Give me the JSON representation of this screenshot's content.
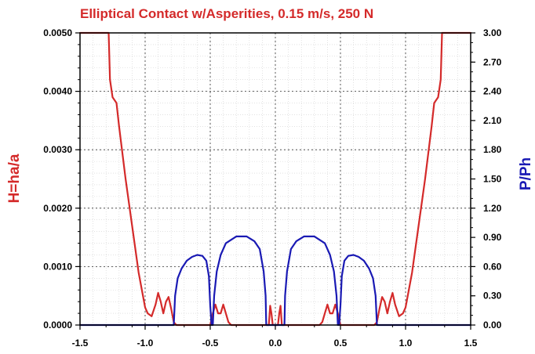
{
  "chart_data": {
    "type": "line",
    "title": "Elliptical Contact w/Asperities, 0.15 m/s, 250 N",
    "xlabel": "",
    "ylabel_left": "H=ha/a",
    "ylabel_right": "P/Ph",
    "xlim": [
      -1.5,
      1.5
    ],
    "ylim_left": [
      0,
      0.005
    ],
    "ylim_right": [
      0,
      3.0
    ],
    "x_ticks": [
      "-1.5",
      "-1.0",
      "-0.5",
      "0.0",
      "0.5",
      "1.0",
      "1.5"
    ],
    "y_left_ticks": [
      "0.0000",
      "0.0010",
      "0.0020",
      "0.0030",
      "0.0040",
      "0.0050"
    ],
    "y_right_ticks": [
      "0.00",
      "0.30",
      "0.60",
      "0.90",
      "1.20",
      "1.50",
      "1.80",
      "2.10",
      "2.40",
      "2.70",
      "3.00"
    ],
    "grid": true,
    "colors": {
      "film": "#d42a2a",
      "pressure": "#1a1ab4",
      "title": "#d42a2a"
    },
    "series": [
      {
        "axis": "left",
        "color": "#d42a2a",
        "x": [
          -1.5,
          -1.28,
          -1.27,
          -1.25,
          -1.22,
          -1.2,
          -1.15,
          -1.1,
          -1.05,
          -1.0,
          -0.98,
          -0.95,
          -0.92,
          -0.9,
          -0.88,
          -0.86,
          -0.84,
          -0.82,
          -0.8,
          -0.78,
          -0.76,
          -0.5,
          -0.48,
          -0.46,
          -0.44,
          -0.42,
          -0.4,
          -0.38,
          -0.36,
          -0.34,
          -0.05,
          -0.04,
          -0.03,
          -0.02,
          -0.01,
          0.0,
          0.01,
          0.02,
          0.03,
          0.04,
          0.05,
          0.34,
          0.36,
          0.38,
          0.4,
          0.42,
          0.44,
          0.46,
          0.48,
          0.5,
          0.76,
          0.78,
          0.8,
          0.82,
          0.84,
          0.86,
          0.88,
          0.9,
          0.92,
          0.95,
          0.98,
          1.0,
          1.05,
          1.1,
          1.15,
          1.2,
          1.22,
          1.25,
          1.27,
          1.28,
          1.5
        ],
        "y": [
          0.005,
          0.005,
          0.0042,
          0.0039,
          0.0038,
          0.0034,
          0.0025,
          0.0017,
          0.0009,
          0.0003,
          0.0002,
          0.00015,
          0.00035,
          0.00055,
          0.0004,
          0.0002,
          0.0004,
          0.00048,
          0.00028,
          5e-05,
          0.0,
          0.0,
          0.0002,
          0.00035,
          0.0002,
          0.0002,
          0.00035,
          0.0002,
          5e-05,
          0.0,
          0.0,
          0.00033,
          0.0002,
          0.0,
          0.0,
          0.0,
          0.0,
          0.0,
          0.0002,
          0.00033,
          0.0,
          0.0,
          5e-05,
          0.0002,
          0.00035,
          0.0002,
          0.0002,
          0.00035,
          0.0002,
          0.0,
          0.0,
          5e-05,
          0.00028,
          0.00048,
          0.0004,
          0.0002,
          0.0004,
          0.00055,
          0.00035,
          0.00015,
          0.0002,
          0.0003,
          0.0009,
          0.0017,
          0.0025,
          0.0034,
          0.0038,
          0.0039,
          0.0042,
          0.005,
          0.005
        ]
      },
      {
        "axis": "right",
        "color": "#1a1ab4",
        "x": [
          -1.5,
          -0.78,
          -0.77,
          -0.75,
          -0.72,
          -0.68,
          -0.64,
          -0.6,
          -0.56,
          -0.53,
          -0.51,
          -0.5,
          -0.49,
          -0.48,
          -0.47,
          -0.45,
          -0.42,
          -0.38,
          -0.3,
          -0.22,
          -0.16,
          -0.12,
          -0.09,
          -0.075,
          -0.07,
          -0.06,
          -0.05,
          0.05,
          0.06,
          0.07,
          0.075,
          0.09,
          0.12,
          0.16,
          0.22,
          0.3,
          0.38,
          0.42,
          0.45,
          0.47,
          0.48,
          0.49,
          0.5,
          0.51,
          0.53,
          0.56,
          0.6,
          0.64,
          0.68,
          0.72,
          0.75,
          0.77,
          0.78,
          1.5
        ],
        "y": [
          0.0,
          0.0,
          0.3,
          0.48,
          0.58,
          0.66,
          0.7,
          0.72,
          0.71,
          0.66,
          0.5,
          0.2,
          0.0,
          0.0,
          0.3,
          0.55,
          0.72,
          0.84,
          0.91,
          0.91,
          0.86,
          0.78,
          0.55,
          0.3,
          0.0,
          0.0,
          0.0,
          0.0,
          0.0,
          0.0,
          0.3,
          0.55,
          0.78,
          0.86,
          0.91,
          0.91,
          0.84,
          0.72,
          0.55,
          0.3,
          0.0,
          0.0,
          0.2,
          0.5,
          0.66,
          0.71,
          0.72,
          0.7,
          0.66,
          0.58,
          0.48,
          0.3,
          0.0,
          0.0
        ]
      }
    ]
  }
}
